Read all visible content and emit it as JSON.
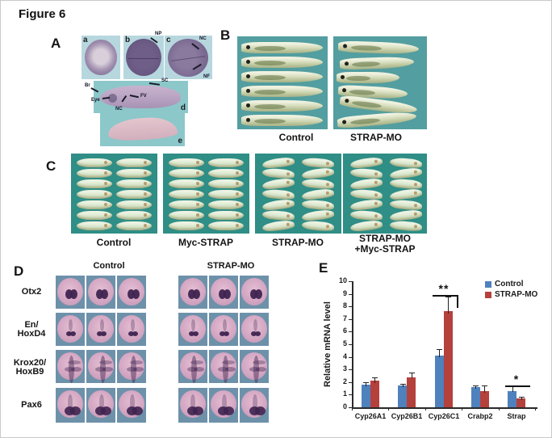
{
  "figure_title": "Figure 6",
  "colors": {
    "panelA_abc_bg": "#b7d7de",
    "panelA_de_bg": "#8cc7ca",
    "panelB_bg": "#539ea0",
    "panelC_bg": "#2f8e86",
    "panelD_cell_bg": "#6e91aa",
    "control_bar": "#4f81bd",
    "strapmo_bar": "#b5413c"
  },
  "panels": {
    "A": {
      "letter": "A",
      "sub_letters": [
        "a",
        "b",
        "c",
        "d",
        "e"
      ],
      "annotations": {
        "np": "NP",
        "nc_top": "NC",
        "nf_bottom": "NF",
        "br": "Br",
        "eye": "Eye",
        "nc_d": "NC",
        "fv": "FV",
        "sc": "SC"
      }
    },
    "B": {
      "letter": "B",
      "groups": [
        {
          "label": "Control",
          "specimens": 6
        },
        {
          "label": "STRAP-MO",
          "specimens": 6
        }
      ]
    },
    "C": {
      "letter": "C",
      "embryos_per_group": 14,
      "groups": [
        {
          "label": "Control"
        },
        {
          "label": "Myc-STRAP"
        },
        {
          "label": "STRAP-MO"
        },
        {
          "label": "STRAP-MO\n+Myc-STRAP"
        }
      ]
    },
    "D": {
      "letter": "D",
      "col_headers": [
        "Control",
        "STRAP-MO"
      ],
      "images_per_condition": 3,
      "row_labels": [
        "Otx2",
        "En/\nHoxD4",
        "Krox20/\nHoxB9",
        "Pax6"
      ]
    },
    "E": {
      "letter": "E"
    }
  },
  "chart_data": {
    "type": "bar",
    "title": "",
    "categories": [
      "Cyp26A1",
      "Cyp26B1",
      "Cyp26C1",
      "Crabp2",
      "Strap"
    ],
    "series": [
      {
        "name": "Control",
        "color": "#4f81bd",
        "values": [
          1.8,
          1.7,
          4.1,
          1.6,
          1.3
        ],
        "errors": [
          0.2,
          0.15,
          0.5,
          0.12,
          0.35
        ]
      },
      {
        "name": "STRAP-MO",
        "color": "#b5413c",
        "values": [
          2.1,
          2.4,
          7.6,
          1.3,
          0.7
        ],
        "errors": [
          0.3,
          0.35,
          1.2,
          0.45,
          0.15
        ]
      }
    ],
    "xlabel": "",
    "ylabel": "Relative mRNA level",
    "ylim": [
      0,
      10
    ],
    "ytick_step": 1,
    "grid": false,
    "legend_position": "top-right",
    "significance": [
      {
        "category": "Cyp26C1",
        "marker": "**"
      },
      {
        "category": "Strap",
        "marker": "*"
      }
    ]
  }
}
